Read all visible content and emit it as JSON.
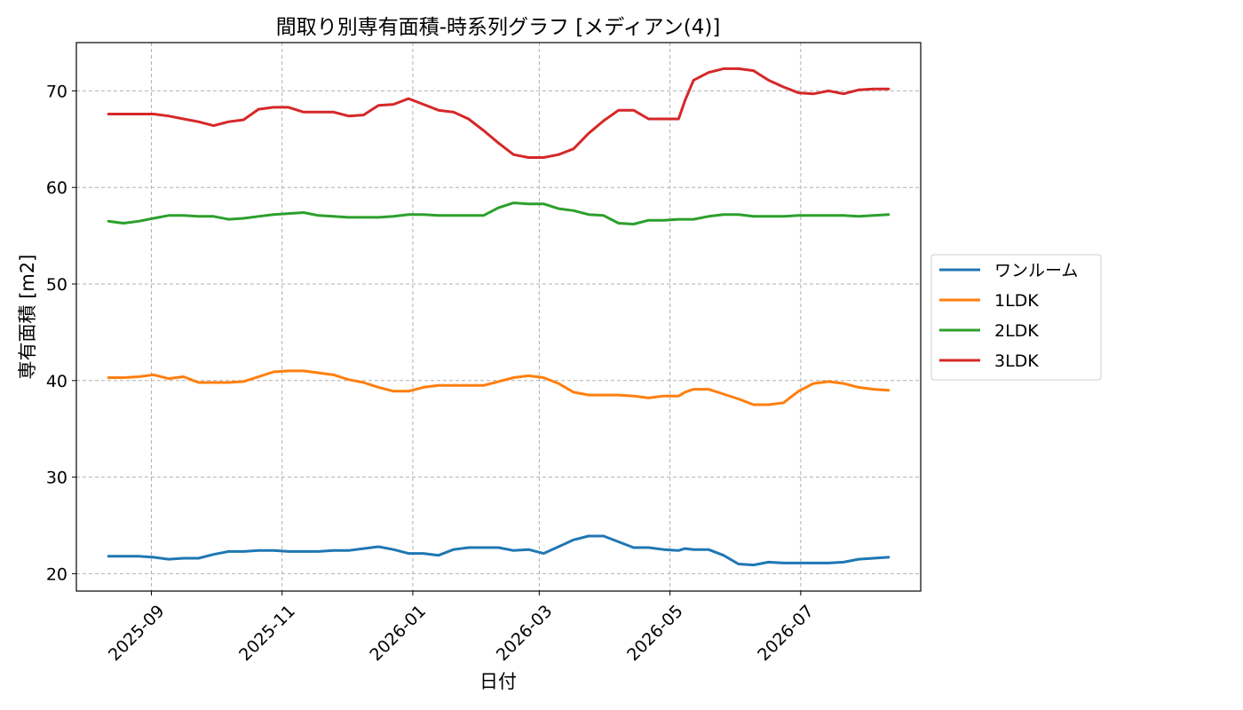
{
  "chart_data": {
    "type": "line",
    "title": "間取り別専有面積-時系列グラフ [メディアン(4)]",
    "xlabel": "日付",
    "ylabel": "専有面積 [m2]",
    "ylim": [
      18.2,
      75.0
    ],
    "xlim": [
      "2025-07-28",
      "2026-08-26"
    ],
    "yticks": [
      "20",
      "30",
      "40",
      "50",
      "60",
      "70"
    ],
    "xticks": [
      "2025-09",
      "2025-11",
      "2026-01",
      "2026-03",
      "2026-05",
      "2026-07"
    ],
    "grid": true,
    "legend": "center-right outside",
    "x": [
      "2025-08-12",
      "2025-08-19",
      "2025-08-26",
      "2025-09-02",
      "2025-09-09",
      "2025-09-16",
      "2025-09-23",
      "2025-09-30",
      "2025-10-07",
      "2025-10-14",
      "2025-10-21",
      "2025-10-28",
      "2025-11-04",
      "2025-11-11",
      "2025-11-18",
      "2025-11-25",
      "2025-12-02",
      "2025-12-09",
      "2025-12-16",
      "2025-12-23",
      "2025-12-30",
      "2026-01-06",
      "2026-01-13",
      "2026-01-20",
      "2026-01-27",
      "2026-02-03",
      "2026-02-10",
      "2026-02-17",
      "2026-02-24",
      "2026-03-03",
      "2026-03-10",
      "2026-03-17",
      "2026-03-24",
      "2026-03-31",
      "2026-04-07",
      "2026-04-14",
      "2026-04-21",
      "2026-04-28",
      "2026-05-05",
      "2026-05-08",
      "2026-05-12",
      "2026-05-19",
      "2026-05-26",
      "2026-06-02",
      "2026-06-09",
      "2026-06-16",
      "2026-06-23",
      "2026-06-30",
      "2026-07-07",
      "2026-07-14",
      "2026-07-21",
      "2026-07-28",
      "2026-08-04",
      "2026-08-11"
    ],
    "series": [
      {
        "name": "ワンルーム",
        "color": "#1f77b4",
        "values": [
          21.8,
          21.8,
          21.8,
          21.7,
          21.5,
          21.6,
          21.6,
          22.0,
          22.3,
          22.3,
          22.4,
          22.4,
          22.3,
          22.3,
          22.3,
          22.4,
          22.4,
          22.6,
          22.8,
          22.5,
          22.1,
          22.1,
          21.9,
          22.5,
          22.7,
          22.7,
          22.7,
          22.4,
          22.5,
          22.1,
          22.8,
          23.5,
          23.9,
          23.9,
          23.3,
          22.7,
          22.7,
          22.5,
          22.4,
          22.6,
          22.5,
          22.5,
          21.9,
          21.0,
          20.9,
          21.2,
          21.1,
          21.1,
          21.1,
          21.1,
          21.2,
          21.5,
          21.6,
          21.7
        ]
      },
      {
        "name": "1LDK",
        "color": "#ff7f0e",
        "values": [
          40.3,
          40.3,
          40.4,
          40.6,
          40.2,
          40.4,
          39.8,
          39.8,
          39.8,
          39.9,
          40.4,
          40.9,
          41.0,
          41.0,
          40.8,
          40.6,
          40.1,
          39.8,
          39.3,
          38.9,
          38.9,
          39.3,
          39.5,
          39.5,
          39.5,
          39.5,
          39.9,
          40.3,
          40.5,
          40.3,
          39.7,
          38.8,
          38.5,
          38.5,
          38.5,
          38.4,
          38.2,
          38.4,
          38.4,
          38.8,
          39.1,
          39.1,
          38.6,
          38.1,
          37.5,
          37.5,
          37.7,
          38.9,
          39.7,
          39.9,
          39.7,
          39.3,
          39.1,
          39.0
        ]
      },
      {
        "name": "2LDK",
        "color": "#2ca02c",
        "values": [
          56.5,
          56.3,
          56.5,
          56.8,
          57.1,
          57.1,
          57.0,
          57.0,
          56.7,
          56.8,
          57.0,
          57.2,
          57.3,
          57.4,
          57.1,
          57.0,
          56.9,
          56.9,
          56.9,
          57.0,
          57.2,
          57.2,
          57.1,
          57.1,
          57.1,
          57.1,
          57.9,
          58.4,
          58.3,
          58.3,
          57.8,
          57.6,
          57.2,
          57.1,
          56.3,
          56.2,
          56.6,
          56.6,
          56.7,
          56.7,
          56.7,
          57.0,
          57.2,
          57.2,
          57.0,
          57.0,
          57.0,
          57.1,
          57.1,
          57.1,
          57.1,
          57.0,
          57.1,
          57.2
        ]
      },
      {
        "name": "3LDK",
        "color": "#d62728",
        "values": [
          67.6,
          67.6,
          67.6,
          67.6,
          67.4,
          67.1,
          66.8,
          66.4,
          66.8,
          67.0,
          68.1,
          68.3,
          68.3,
          67.8,
          67.8,
          67.8,
          67.4,
          67.5,
          68.5,
          68.6,
          69.2,
          68.6,
          68.0,
          67.8,
          67.1,
          65.9,
          64.6,
          63.4,
          63.1,
          63.1,
          63.4,
          64.0,
          65.6,
          66.9,
          68.0,
          68.0,
          67.1,
          67.1,
          67.1,
          69.0,
          71.1,
          71.9,
          72.3,
          72.3,
          72.1,
          71.1,
          70.4,
          69.8,
          69.7,
          70.0,
          69.7,
          70.1,
          70.2,
          70.2
        ]
      }
    ]
  }
}
